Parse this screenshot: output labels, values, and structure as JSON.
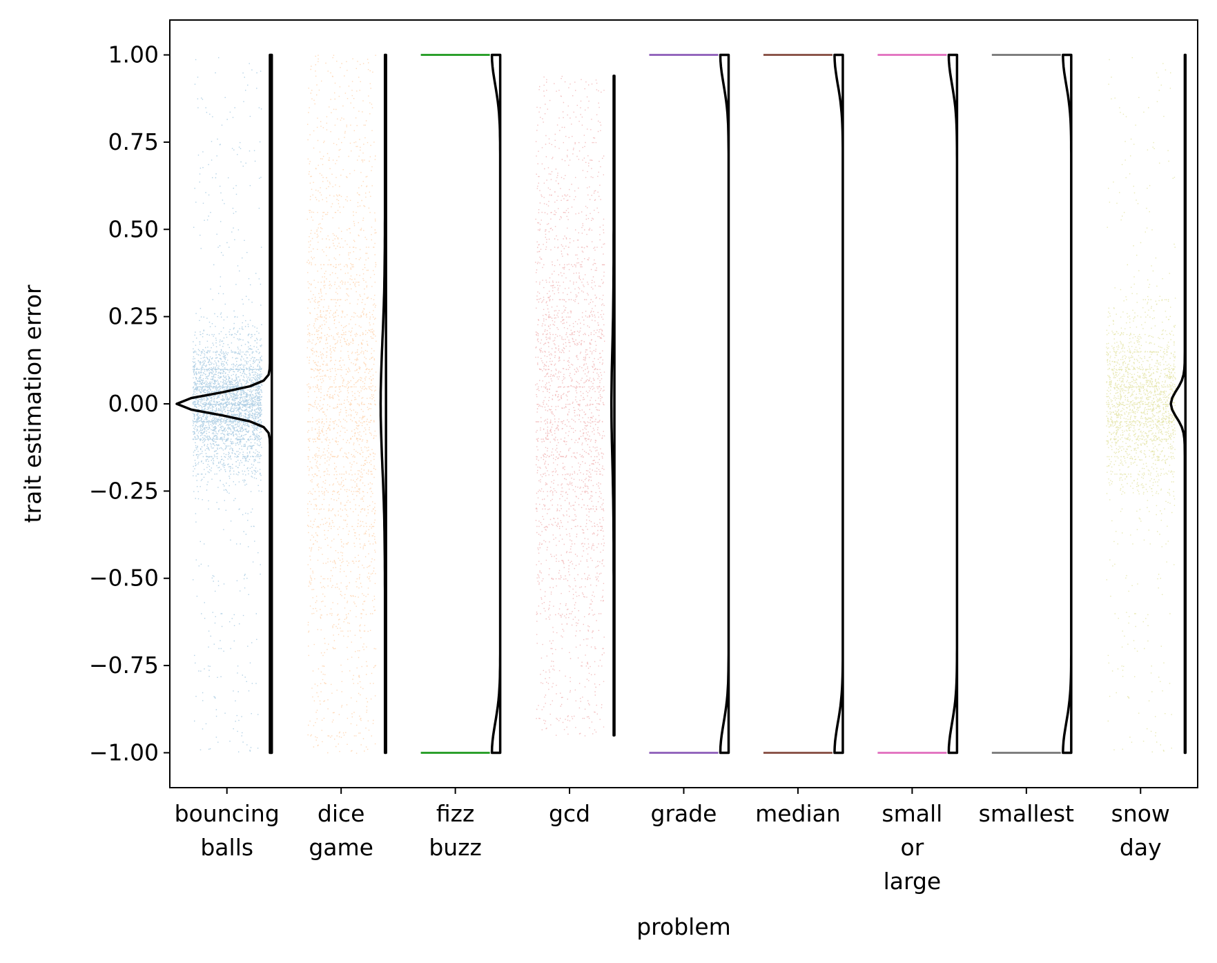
{
  "chart_data": {
    "type": "scatter",
    "subtype": "strip-plot-with-half-violin",
    "title": "",
    "xlabel": "problem",
    "ylabel": "trait estimation error",
    "ylim": [
      -1.1,
      1.1
    ],
    "yticks": [
      1.0,
      0.75,
      0.5,
      0.25,
      0.0,
      -0.25,
      -0.5,
      -0.75,
      -1.0
    ],
    "ytick_labels": [
      "1.00",
      "0.75",
      "0.50",
      "0.25",
      "0.00",
      "−0.25",
      "−0.50",
      "−0.75",
      "−1.00"
    ],
    "grid": false,
    "legend": "none",
    "categories": [
      {
        "key": "bouncing-balls",
        "label_lines": [
          "bouncing",
          "balls"
        ],
        "color": "#1f77b4",
        "distribution": "peaked",
        "range": [
          -1.0,
          1.0
        ],
        "spread": 0.09
      },
      {
        "key": "dice-game",
        "label_lines": [
          "dice",
          "game"
        ],
        "color": "#ff7f0e",
        "distribution": "broad",
        "range": [
          -1.0,
          1.0
        ],
        "spread": 0.3
      },
      {
        "key": "fizz-buzz",
        "label_lines": [
          "fizz",
          "buzz"
        ],
        "color": "#2ca02c",
        "distribution": "binary",
        "range": [
          -1.0,
          1.0
        ]
      },
      {
        "key": "gcd",
        "label_lines": [
          "gcd"
        ],
        "color": "#d62728",
        "distribution": "broad",
        "range": [
          -0.95,
          0.94
        ],
        "spread": 0.3
      },
      {
        "key": "grade",
        "label_lines": [
          "grade"
        ],
        "color": "#9467bd",
        "distribution": "binary",
        "range": [
          -1.0,
          1.0
        ]
      },
      {
        "key": "median",
        "label_lines": [
          "median"
        ],
        "color": "#8c564b",
        "distribution": "binary",
        "range": [
          -1.0,
          1.0
        ]
      },
      {
        "key": "small-or-large",
        "label_lines": [
          "small",
          "or",
          "large"
        ],
        "color": "#e377c2",
        "distribution": "binary",
        "range": [
          -1.0,
          1.0
        ]
      },
      {
        "key": "smallest",
        "label_lines": [
          "smallest"
        ],
        "color": "#7f7f7f",
        "distribution": "binary",
        "range": [
          -1.0,
          1.0
        ]
      },
      {
        "key": "snow-day",
        "label_lines": [
          "snow",
          "day"
        ],
        "color": "#bcbd22",
        "distribution": "peaked",
        "range": [
          -1.0,
          1.0
        ],
        "spread": 0.12
      }
    ]
  }
}
